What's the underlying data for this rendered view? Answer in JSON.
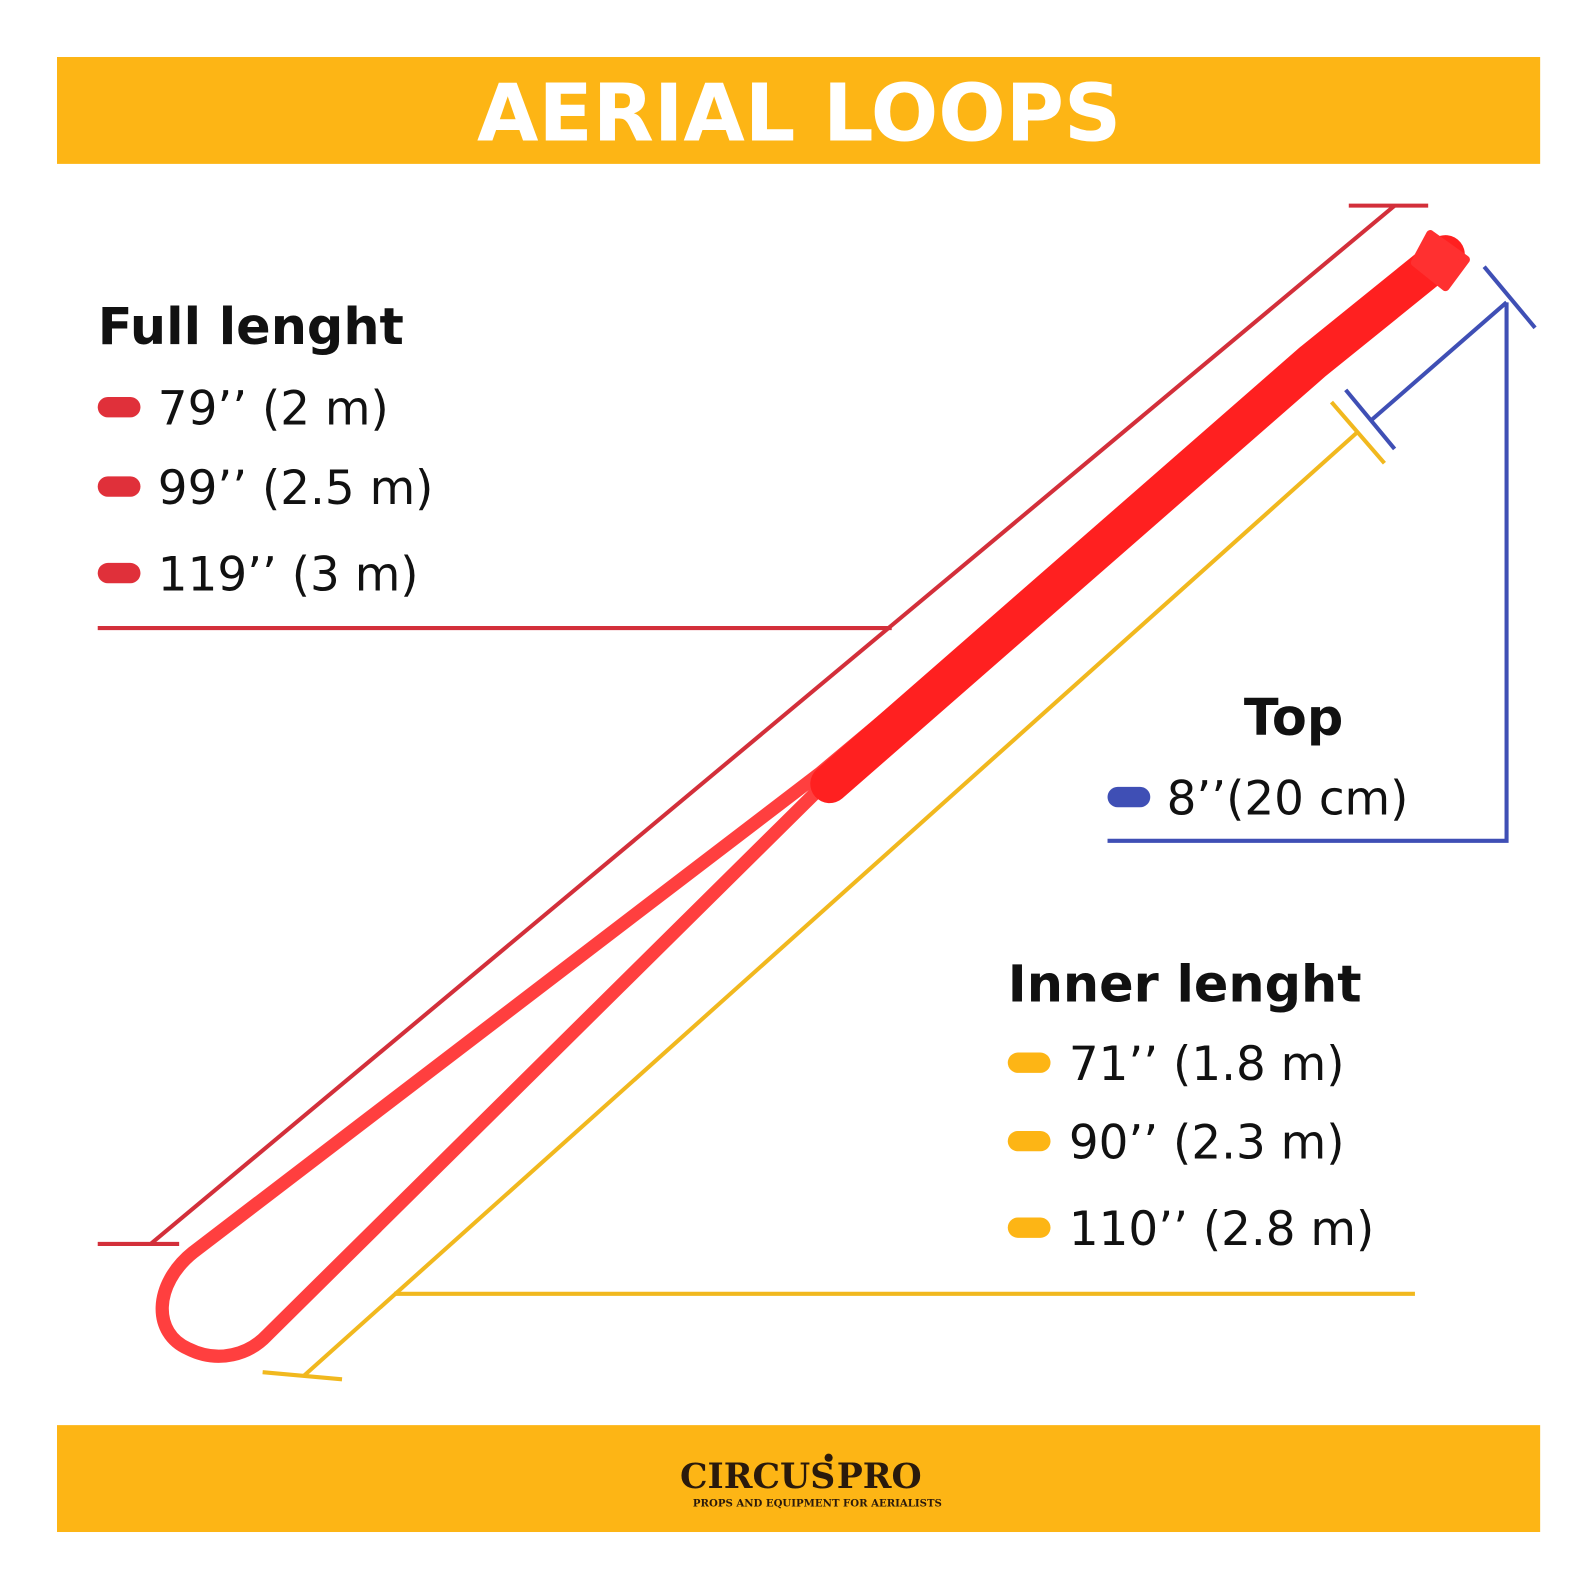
{
  "header": {
    "title": "AERIAL LOOPS"
  },
  "full_length": {
    "title": "Full lenght",
    "items": [
      "79’’ (2 m)",
      "99’’ (2.5 m)",
      "119’’ (3 m)"
    ]
  },
  "top": {
    "title": "Top",
    "items": [
      "8’’(20 cm)"
    ]
  },
  "inner_length": {
    "title": "Inner lenght",
    "items": [
      "71’’ (1.8 m)",
      "90’’ (2.3 m)",
      "110’’ (2.8 m)"
    ]
  },
  "footer": {
    "brand_left": "CIRCUS",
    "brand_right": "PRO",
    "tagline": "PROPS AND EQUIPMENT FOR AERIALISTS"
  }
}
